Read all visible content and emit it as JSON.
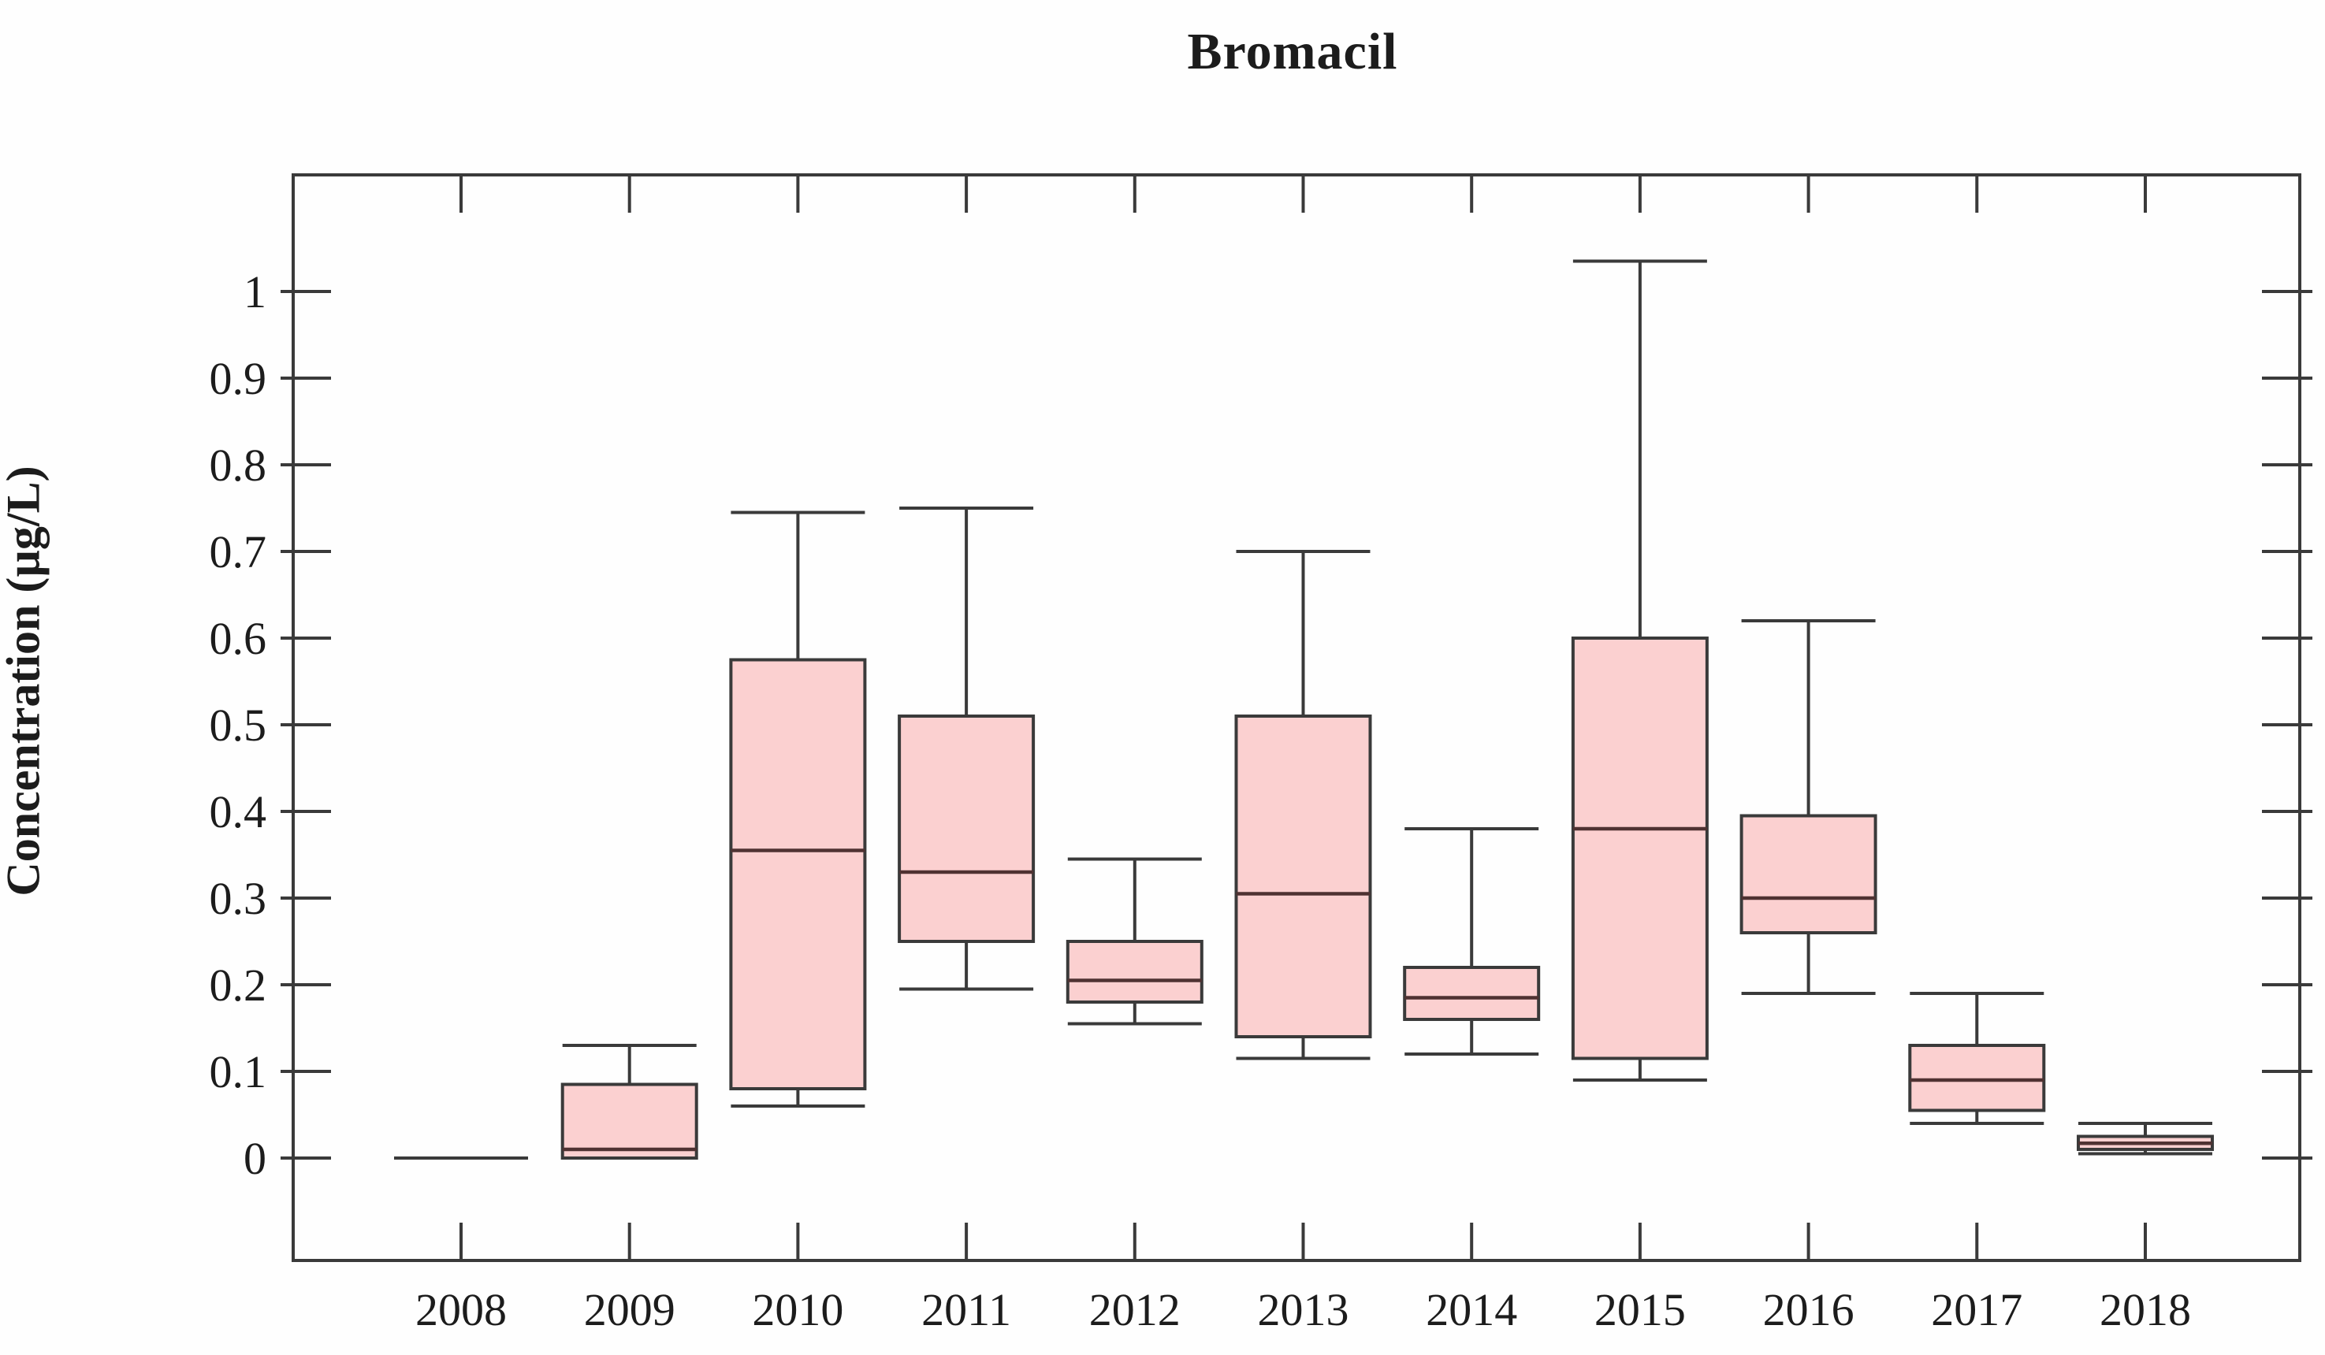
{
  "figure": {
    "title": "Bromacil",
    "y_axis_title": "Concentration (µg/L)"
  },
  "chart_data": {
    "type": "boxplot",
    "title": "Bromacil",
    "xlabel": "",
    "ylabel": "Concentration (µg/L)",
    "legend": "none",
    "grid": false,
    "ylim": [
      -0.118,
      1.135
    ],
    "y_ticks": [
      0,
      0.1,
      0.2,
      0.3,
      0.4,
      0.5,
      0.6,
      0.7,
      0.8,
      0.9,
      1
    ],
    "y_tick_labels": [
      "0",
      "0.1",
      "0.2",
      "0.3",
      "0.4",
      "0.5",
      "0.6",
      "0.7",
      "0.8",
      "0.9",
      "1"
    ],
    "categories": [
      "2008",
      "2009",
      "2010",
      "2011",
      "2012",
      "2013",
      "2014",
      "2015",
      "2016",
      "2017",
      "2018"
    ],
    "series": [
      {
        "year": "2008",
        "whisker_low": 0,
        "q1": 0,
        "median": 0,
        "q3": 0,
        "whisker_high": 0,
        "note": "all values zero - collapses to flat line"
      },
      {
        "year": "2009",
        "whisker_low": 0,
        "q1": 0,
        "median": 0.01,
        "q3": 0.085,
        "whisker_high": 0.13
      },
      {
        "year": "2010",
        "whisker_low": 0.06,
        "q1": 0.08,
        "median": 0.355,
        "q3": 0.575,
        "whisker_high": 0.745
      },
      {
        "year": "2011",
        "whisker_low": 0.195,
        "q1": 0.25,
        "median": 0.33,
        "q3": 0.51,
        "whisker_high": 0.75
      },
      {
        "year": "2012",
        "whisker_low": 0.155,
        "q1": 0.18,
        "median": 0.205,
        "q3": 0.25,
        "whisker_high": 0.345
      },
      {
        "year": "2013",
        "whisker_low": 0.115,
        "q1": 0.14,
        "median": 0.305,
        "q3": 0.51,
        "whisker_high": 0.7
      },
      {
        "year": "2014",
        "whisker_low": 0.12,
        "q1": 0.16,
        "median": 0.185,
        "q3": 0.22,
        "whisker_high": 0.38
      },
      {
        "year": "2015",
        "whisker_low": 0.09,
        "q1": 0.115,
        "median": 0.38,
        "q3": 0.6,
        "whisker_high": 1.035
      },
      {
        "year": "2016",
        "whisker_low": 0.19,
        "q1": 0.26,
        "median": 0.3,
        "q3": 0.395,
        "whisker_high": 0.62
      },
      {
        "year": "2017",
        "whisker_low": 0.04,
        "q1": 0.055,
        "median": 0.09,
        "q3": 0.13,
        "whisker_high": 0.19
      },
      {
        "year": "2018",
        "whisker_low": 0.005,
        "q1": 0.01,
        "median": 0.017,
        "q3": 0.025,
        "whisker_high": 0.04
      }
    ],
    "colors": {
      "box_fill": "#fbd0d0",
      "box_stroke": "#3a3a3a",
      "median_line": "#4f3232",
      "whisker": "#3a3a3a",
      "axis": "#3a3a3a",
      "text": "#1c1c1c",
      "background": "#fefefe"
    }
  }
}
